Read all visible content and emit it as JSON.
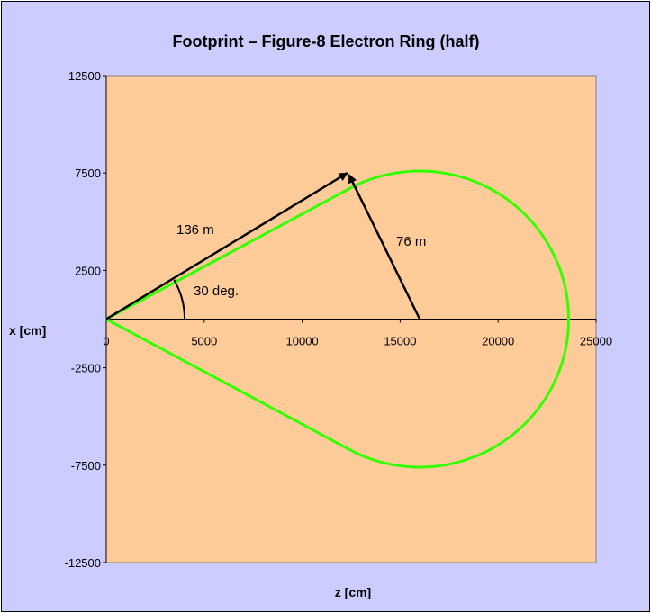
{
  "chart_data": {
    "type": "line",
    "title": "Footprint – Figure-8 Electron Ring (half)",
    "xlabel": "z [cm]",
    "ylabel": "x [cm]",
    "xlim": [
      0,
      25000
    ],
    "ylim": [
      -12500,
      12500
    ],
    "x_ticks": [
      0,
      5000,
      10000,
      15000,
      20000,
      25000
    ],
    "y_ticks": [
      12500,
      7500,
      2500,
      -2500,
      -7500,
      -12500
    ],
    "x_tick_labels": [
      "0",
      "5000",
      "10000",
      "15000",
      "20000",
      "25000"
    ],
    "y_tick_labels": [
      "12500",
      "7500",
      "2500",
      "-2500",
      "-7500",
      "-12500"
    ],
    "grid": false,
    "legend": "none",
    "colors": {
      "background": "#ccccff",
      "plot_area": "#ffcc99",
      "series": "#33ff00",
      "annotation": "#000000"
    },
    "series": [
      {
        "description": "ring footprint: two straight sections at ±30 deg from origin, joined by a circular arc of radius 7600 centered at (16000, 0)",
        "arc_center": [
          16000,
          0
        ],
        "arc_radius": 7600,
        "straight_angle_deg": 30
      }
    ],
    "annotations": [
      {
        "text": "136 m",
        "arrow_from": [
          0,
          0
        ],
        "arrow_to": [
          12300,
          7500
        ]
      },
      {
        "text": "76 m",
        "arrow_from": [
          16000,
          0
        ],
        "arrow_to": [
          12300,
          7500
        ]
      },
      {
        "text": "30 deg."
      }
    ]
  }
}
